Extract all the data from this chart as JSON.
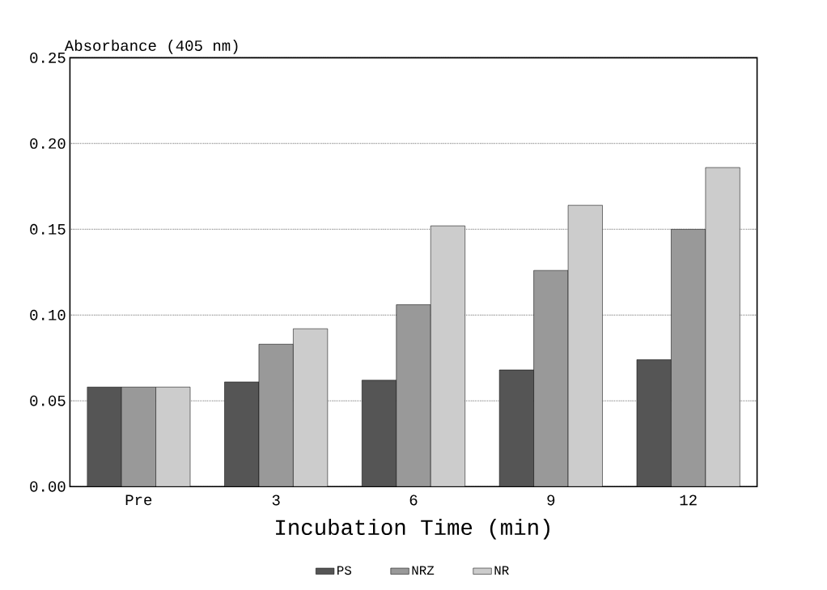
{
  "chart_data": {
    "type": "bar",
    "ylabel": "Absorbance (405 nm)",
    "xlabel": "Incubation Time (min)",
    "categories": [
      "Pre",
      "3",
      "6",
      "9",
      "12"
    ],
    "series": [
      {
        "name": "PS",
        "color": "#555555",
        "values": [
          0.058,
          0.061,
          0.062,
          0.068,
          0.074
        ]
      },
      {
        "name": "NRZ",
        "color": "#999999",
        "values": [
          0.058,
          0.083,
          0.106,
          0.126,
          0.15
        ]
      },
      {
        "name": "NR",
        "color": "#cccccc",
        "values": [
          0.058,
          0.092,
          0.152,
          0.164,
          0.186
        ]
      }
    ],
    "ylim": [
      0,
      0.25
    ],
    "yticks": [
      {
        "value": 0,
        "label": "0.00"
      },
      {
        "value": 0.05,
        "label": "0.05"
      },
      {
        "value": 0.1,
        "label": "0.10"
      },
      {
        "value": 0.15,
        "label": "0.15"
      },
      {
        "value": 0.2,
        "label": "0.20"
      },
      {
        "value": 0.25,
        "label": "0.25"
      }
    ],
    "grid": "y",
    "legend": "bottom"
  }
}
